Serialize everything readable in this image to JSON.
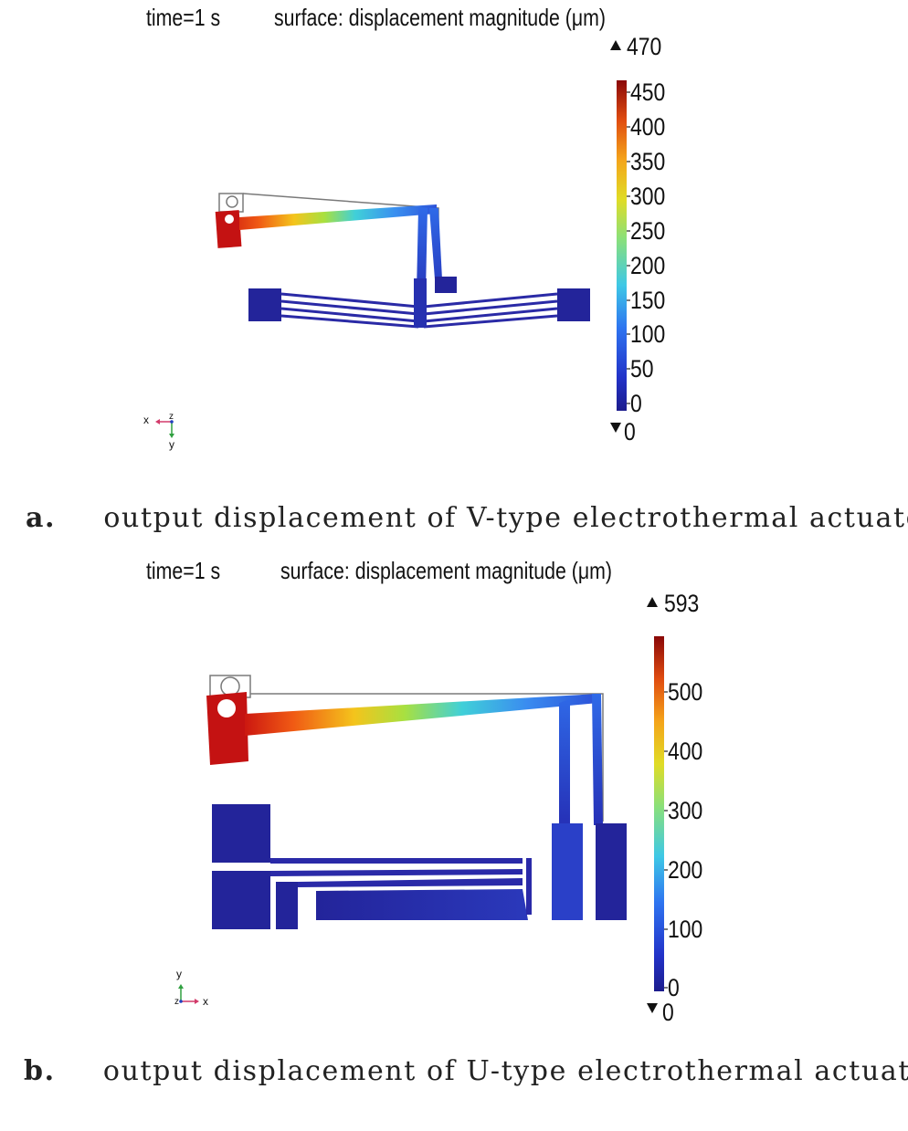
{
  "panel_a": {
    "time_label": "time=1 s",
    "surface_label": "surface: displacement magnitude (μm)",
    "max_label": "470",
    "min_label": "0",
    "colorbar_ticks": [
      "450",
      "400",
      "350",
      "300",
      "250",
      "200",
      "150",
      "100",
      "50",
      "0"
    ],
    "axis_labels": {
      "h": "x",
      "z": "z",
      "v": "y"
    },
    "caption_letter": "a.",
    "caption_text": "output displacement of V-type electrothermal actuator"
  },
  "panel_b": {
    "time_label": "time=1 s",
    "surface_label": "surface: displacement magnitude (μm)",
    "max_label": "593",
    "min_label": "0",
    "colorbar_ticks": [
      "500",
      "400",
      "300",
      "200",
      "100",
      "0"
    ],
    "axis_labels": {
      "v": "y",
      "z": "z",
      "h": "x"
    },
    "caption_letter": "b.",
    "caption_text": "output displacement of U-type electrothermal actuator"
  },
  "colors": {
    "low": "#24249a",
    "mid": "#7fe07a",
    "high": "#a00c0c",
    "outline": "#7a7a7a"
  }
}
